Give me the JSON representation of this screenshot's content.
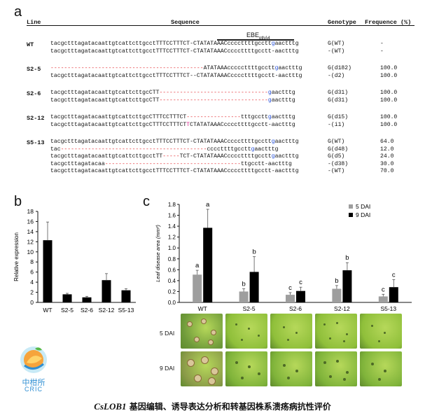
{
  "panel_a": {
    "letter": "a",
    "headers": {
      "line": "Line",
      "sequence": "Sequence",
      "genotype": "Genotype",
      "frequence": "Frequence (%)"
    },
    "ebe_label": "EBE",
    "ebe_sub": "pthA4",
    "groups": [
      {
        "line": "WT",
        "rows": [
          {
            "segs": [
              [
                "tacgctttagatacaattgtcattcttgcctTTTCCTTTCT-CTATATAAACccccttttgcctt",
                ""
              ],
              [
                "g",
                "blue"
              ],
              [
                "aactttg",
                ""
              ]
            ],
            "genotype": "G(WT)",
            "freq": "-"
          },
          {
            "segs": [
              [
                "tacgctttagatacaattgtcattcttgcctTTTCCTTTCT-CTATATAAACccccttttgcctt-aactttg",
                ""
              ]
            ],
            "genotype": "-(WT)",
            "freq": "-"
          }
        ]
      },
      {
        "line": "S2-5",
        "rows": [
          {
            "segs": [
              [
                "---------------------------------------------",
                "red"
              ],
              [
                "ATATAAAcccccttttgcctt",
                ""
              ],
              [
                "g",
                "blue"
              ],
              [
                "aactttg",
                ""
              ]
            ],
            "genotype": "G(d182)",
            "freq": "100.0"
          },
          {
            "segs": [
              [
                "tacgctttagatacaattgtcattcttgcctTTTCCTTTCT--CTATATAAACccccttttgcctt-aactttg",
                ""
              ]
            ],
            "genotype": "-(d2)",
            "freq": "100.0"
          }
        ]
      },
      {
        "line": "S2-6",
        "rows": [
          {
            "segs": [
              [
                "tacgctttagatacaattgtcattcttgcCTT",
                ""
              ],
              [
                "--------------------------------",
                "red"
              ],
              [
                "g",
                "blue"
              ],
              [
                "aactttg",
                ""
              ]
            ],
            "genotype": "G(d31)",
            "freq": "100.0"
          },
          {
            "segs": [
              [
                "tacgctttagatacaattgtcattcttgcCTT",
                ""
              ],
              [
                "--------------------------------",
                "red"
              ],
              [
                "g",
                "blue"
              ],
              [
                "aactttg",
                ""
              ]
            ],
            "genotype": "G(d31)",
            "freq": "100.0"
          }
        ]
      },
      {
        "line": "S2-12",
        "rows": [
          {
            "segs": [
              [
                "tacgctttagatacaattgtcattcttgcCTTTCCTTTCT",
                ""
              ],
              [
                "----------------",
                "red"
              ],
              [
                "tttgcctt",
                ""
              ],
              [
                "g",
                "blue"
              ],
              [
                "aactttg",
                ""
              ]
            ],
            "genotype": "G(d15)",
            "freq": "100.0"
          },
          {
            "segs": [
              [
                "tacgctttagatacaattgtcattcttgcCTTTCCTTTCT",
                ""
              ],
              [
                "T",
                "pink"
              ],
              [
                "CTATATAAACccccttttgcctt-aactttg",
                ""
              ]
            ],
            "genotype": "-(i1)",
            "freq": "100.0"
          }
        ]
      },
      {
        "line": "S5-13",
        "rows": [
          {
            "segs": [
              [
                "tacgctttagatacaattgtcattcttgcctTTTCCTTTCT-CTATATAAACccccttttgcctt",
                ""
              ],
              [
                "g",
                "blue"
              ],
              [
                "aactttg",
                ""
              ]
            ],
            "genotype": "G(WT)",
            "freq": "64.0"
          },
          {
            "segs": [
              [
                "tac",
                ""
              ],
              [
                "-------------------------------------------",
                "red"
              ],
              [
                "ccccttttgcctt",
                ""
              ],
              [
                "g",
                "blue"
              ],
              [
                "aactttg",
                ""
              ]
            ],
            "genotype": "G(d48)",
            "freq": "12.0"
          },
          {
            "segs": [
              [
                "tacgctttagatacaattgtcattcttgcctTT",
                ""
              ],
              [
                "-----",
                "red"
              ],
              [
                "TCT-CTATATAAACccccttttgcctt",
                ""
              ],
              [
                "g",
                "blue"
              ],
              [
                "aactttg",
                ""
              ]
            ],
            "genotype": "G(d5)",
            "freq": "24.0"
          },
          {
            "segs": [
              [
                "tacgctttagatacaa",
                ""
              ],
              [
                "----------------------------------------",
                "red"
              ],
              [
                "ttgcctt-aactttg",
                ""
              ]
            ],
            "genotype": "-(d38)",
            "freq": "30.0"
          },
          {
            "segs": [
              [
                "tacgctttagatacaattgtcattcttgcctTTTCCTTTCT-CTATATAAACccccttttgcctt-aactttg",
                ""
              ]
            ],
            "genotype": "-(WT)",
            "freq": "70.0"
          }
        ]
      }
    ]
  },
  "panel_b": {
    "letter": "b"
  },
  "panel_c": {
    "letter": "c",
    "photo_row_labels": [
      "5 DAI",
      "9 DAI"
    ]
  },
  "chart_data": [
    {
      "type": "bar",
      "panel": "b",
      "categories": [
        "WT",
        "S2-5",
        "S2-6",
        "S2-12",
        "S5-13"
      ],
      "series": [
        {
          "values": [
            12.3,
            1.6,
            1.0,
            4.4,
            2.4
          ],
          "errors": [
            3.6,
            0.2,
            0.2,
            1.3,
            0.3
          ]
        }
      ],
      "ylabel": "Relative expression",
      "ylim": [
        0,
        18
      ],
      "yticks": [
        0,
        2,
        4,
        6,
        8,
        10,
        12,
        14,
        16,
        18
      ],
      "bar_color": "#000000"
    },
    {
      "type": "bar",
      "panel": "c",
      "categories": [
        "WT",
        "S2-5",
        "S2-6",
        "S2-12",
        "S5-13"
      ],
      "series": [
        {
          "name": "5 DAI",
          "color": "#9e9e9e",
          "values": [
            0.51,
            0.2,
            0.14,
            0.25,
            0.11
          ],
          "errors": [
            0.08,
            0.05,
            0.04,
            0.06,
            0.04
          ],
          "labels": [
            "a",
            "b",
            "c",
            "b",
            "c"
          ]
        },
        {
          "name": "9 DAI",
          "color": "#000000",
          "values": [
            1.37,
            0.56,
            0.21,
            0.59,
            0.28
          ],
          "errors": [
            0.34,
            0.28,
            0.07,
            0.14,
            0.14
          ],
          "labels": [
            "a",
            "b",
            "c",
            "b",
            "c"
          ]
        }
      ],
      "ylabel": "Leaf disease area (mm²)",
      "ylim": [
        0,
        1.8
      ],
      "yticks": [
        "0.0",
        "0.2",
        "0.4",
        "0.6",
        "0.8",
        "1.0",
        "1.2",
        "1.4",
        "1.6",
        "1.8"
      ],
      "legend_position": "top-right"
    }
  ],
  "logo": {
    "line1": "中柑所",
    "line2": "CRIC"
  },
  "caption": {
    "gene": "CsLOB1",
    "rest": " 基因编辑、诱导表达分析和转基因株系溃疡病抗性评价"
  }
}
